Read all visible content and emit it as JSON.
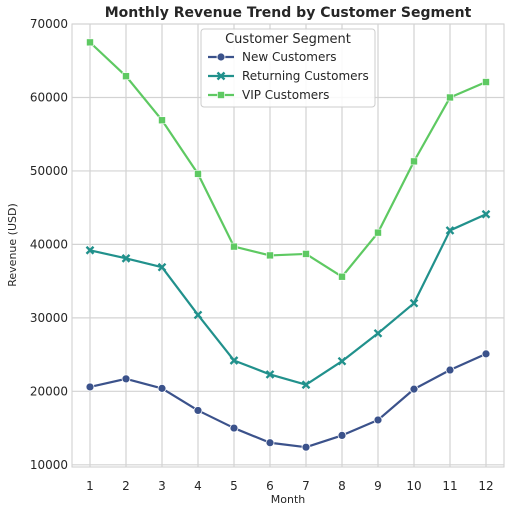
{
  "chart_data": {
    "type": "line",
    "title": "Monthly Revenue Trend by Customer Segment",
    "xlabel": "Month",
    "ylabel": "Revenue (USD)",
    "x": [
      1,
      2,
      3,
      4,
      5,
      6,
      7,
      8,
      9,
      10,
      11,
      12
    ],
    "xlim": [
      0.5,
      12.5
    ],
    "ylim": [
      9700,
      70000
    ],
    "yticks": [
      10000,
      20000,
      30000,
      40000,
      50000,
      60000,
      70000
    ],
    "grid": true,
    "legend": {
      "title": "Customer Segment",
      "placement": "top-center"
    },
    "series": [
      {
        "name": "New Customers",
        "marker": "circle",
        "color": "#3b528b",
        "values": [
          20600,
          21700,
          20400,
          17400,
          15000,
          13000,
          12400,
          14000,
          16100,
          20300,
          22900,
          25100
        ]
      },
      {
        "name": "Returning Customers",
        "marker": "x",
        "color": "#21918c",
        "values": [
          39200,
          38100,
          36900,
          30400,
          24200,
          22300,
          20900,
          24100,
          27900,
          32000,
          41900,
          44100
        ]
      },
      {
        "name": "VIP Customers",
        "marker": "square",
        "color": "#5ec962",
        "values": [
          67500,
          62900,
          56900,
          49600,
          39700,
          38500,
          38700,
          35600,
          41600,
          51300,
          60000,
          62100
        ]
      }
    ]
  }
}
